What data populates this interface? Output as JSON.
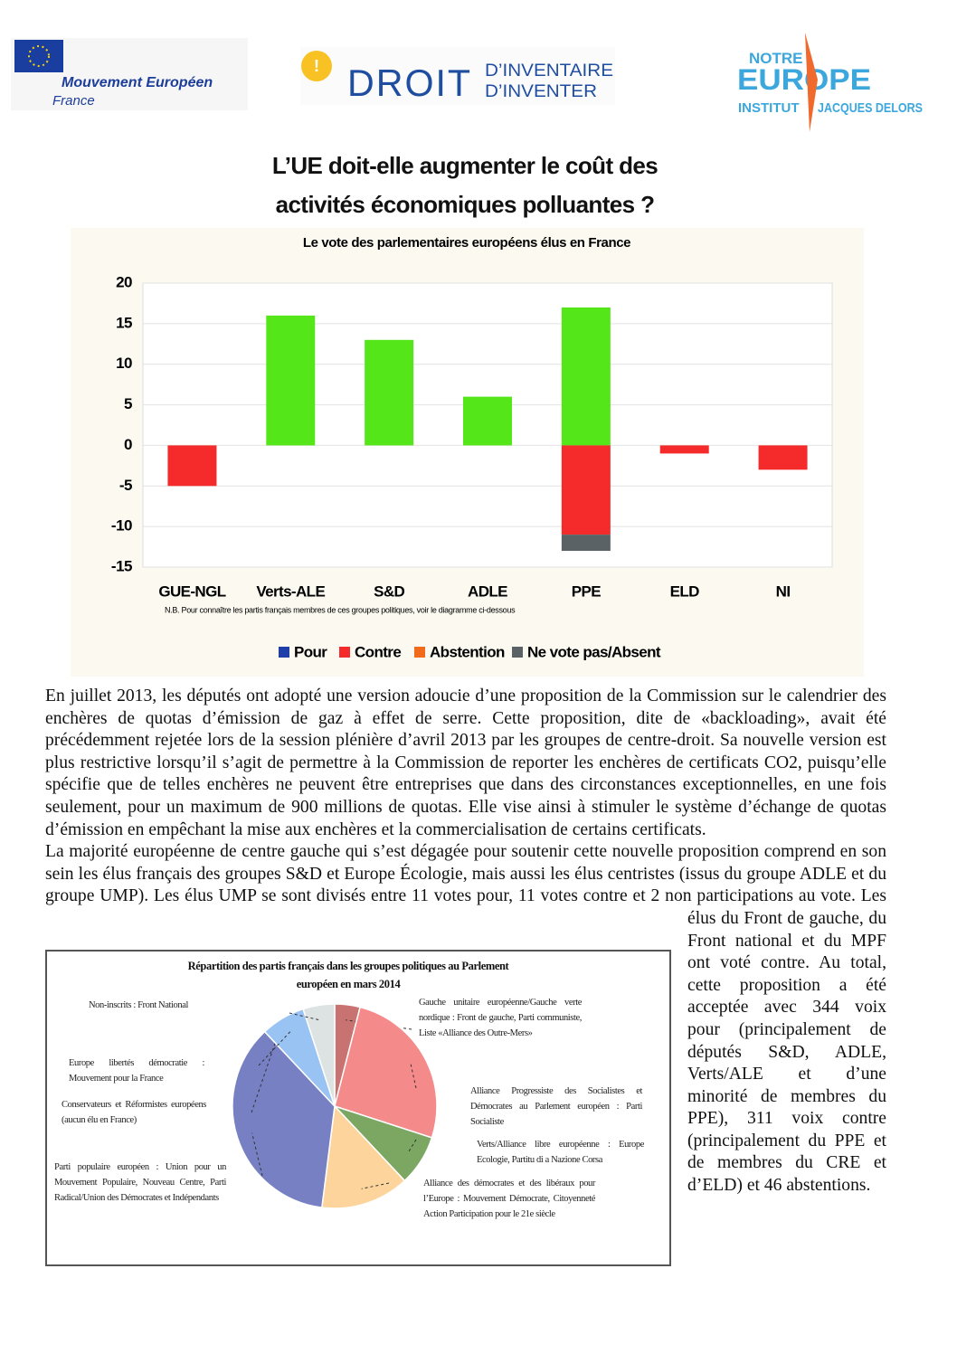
{
  "logos": {
    "me_name": "Mouvement Européen",
    "me_country": "France",
    "droit": "DROIT",
    "inventaire": "D’INVENTAIRE",
    "inventer": "D’INVENTER",
    "notre": "NOTRE",
    "europe": "EUROPE",
    "institut": "INSTITUT",
    "delors": "JACQUES DELORS"
  },
  "title": [
    "L’UE doit-elle augmenter le coût des",
    "activités économiques polluantes ?"
  ],
  "body": {
    "paragraphs": [
      "En juillet 2013, les députés ont adopté une version adoucie d’une proposition de la Commission sur le calendrier des enchères de quotas d’émission de gaz à effet de serre. Cette proposition, dite de «backloading», avait été précédemment rejetée lors de la session plénière d’avril 2013 par les groupes de centre-droit. Sa nouvelle version est plus restrictive lorsqu’il s’agit de permettre à la Commission de reporter les enchères de certificats CO2, puisqu’elle spécifie que de telles enchères ne peuvent être entreprises que dans des circonstances exceptionnelles, en une fois seulement, pour un maximum de 900 millions de quotas. Elle vise ainsi à stimuler le système d’échange de quotas d’émission en empêchant la mise aux enchères et la commercialisation de certains certificats.",
      "La majorité européenne de centre gauche qui s’est dégagée pour soutenir cette nouvelle proposition comprend en son sein les élus français des groupes S&D et Europe Écologie, mais aussi les élus centristes (issus du groupe ADLE et du groupe UMP). Les élus UMP se sont divisés entre 11 votes pour, 11 votes contre et 2 non participations au vote. Les élus du Front de gauche, du Front national et du MPF ont voté contre. Au total, cette proposition a été acceptée avec 344 voix pour (principalement de députés S&D, ADLE, Verts/ALE et d’une minorité de membres du PPE), 311 voix contre (principalement du PPE et de membres du CRE et d’ELD) et 46 abstentions."
    ]
  },
  "chart_data": [
    {
      "type": "bar",
      "stacked": true,
      "title": "Le vote des parlementaires européens élus en France",
      "note": "N.B. Pour connaître les partis français membres de ces groupes politiques, voir le diagramme ci-dessous",
      "categories": [
        "GUE-NGL",
        "Verts-ALE",
        "S&D",
        "ADLE",
        "PPE",
        "ELD",
        "NI"
      ],
      "series": [
        {
          "name": "Pour",
          "color": "#55e619",
          "legend_color": "#1f3fa8",
          "values": [
            0,
            16,
            13,
            6,
            17,
            0,
            0
          ]
        },
        {
          "name": "Contre",
          "color": "#f52a2a",
          "values": [
            -5,
            0,
            0,
            0,
            -11,
            -1,
            -3
          ]
        },
        {
          "name": "Abstention",
          "color": "#f26b1d",
          "values": [
            0,
            0,
            0,
            0,
            0,
            0,
            0
          ]
        },
        {
          "name": "Ne vote pas/Absent",
          "color": "#5a6266",
          "values": [
            0,
            0,
            0,
            0,
            -2,
            0,
            0
          ]
        }
      ],
      "ylim": [
        -15,
        20
      ],
      "yticks": [
        -15,
        -10,
        -5,
        0,
        5,
        10,
        15,
        20
      ],
      "grid": true
    },
    {
      "type": "pie",
      "title": "Répartition des partis français dans les groupes politiques au Parlement européen en mars 2014",
      "categories": [
        "Gauche unitaire européenne/Gauche verte nordique : Front de gauche, Parti communiste, Liste «Alliance des Outre-Mers»",
        "Alliance Progressiste des Socialistes et Démocrates au Parlement européen : Parti Socialiste",
        "Verts/Alliance libre européenne : Europe Ecologie, Partitu di a Nazione Corsa",
        "Alliance des démocrates et des libéraux pour l’Europe : Mouvement Démocrate, Citoyenneté Action Participation pour le 21e siècle",
        "Parti populaire européen : Union pour un Mouvement Populaire, Nouveau Centre, Parti Radical/Union des Démocrates et Indépendants",
        "Conservateurs et Réformistes européens (aucun élu en France)",
        "Europe libertés démocratie : Mouvement pour la France",
        "Non-inscrits : Front National"
      ],
      "values": [
        4,
        26,
        8,
        14,
        36,
        0,
        7,
        5
      ],
      "colors": [
        "#c87272",
        "#f58a8a",
        "#7ba763",
        "#fdd49c",
        "#7680c2",
        "#bfbfbf",
        "#98c3f3",
        "#dde3e3"
      ]
    }
  ]
}
